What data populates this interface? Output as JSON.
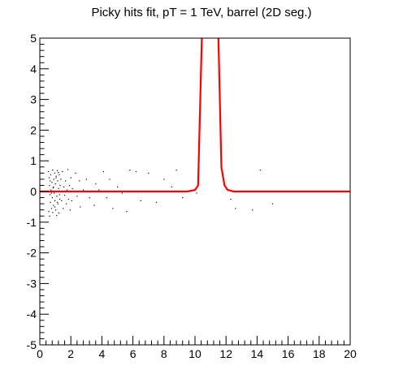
{
  "chart_data": {
    "type": "scatter",
    "title": "Picky hits fit, pT = 1 TeV, barrel (2D seg.)",
    "xlabel": "",
    "ylabel": "",
    "xlim": [
      0,
      20
    ],
    "ylim": [
      -5,
      5
    ],
    "x_ticks": [
      0,
      2,
      4,
      6,
      8,
      10,
      12,
      14,
      16,
      18,
      20
    ],
    "y_ticks": [
      -5,
      -4,
      -3,
      -2,
      -1,
      0,
      1,
      2,
      3,
      4,
      5
    ],
    "grid": false,
    "colors": {
      "points": "#000000",
      "curve": "#ff0000",
      "frame": "#000000"
    },
    "series": [
      {
        "type": "scatter",
        "points": [
          [
            0.55,
            0.65
          ],
          [
            0.6,
            0.45
          ],
          [
            0.62,
            0.2
          ],
          [
            0.65,
            -0.1
          ],
          [
            0.68,
            -0.35
          ],
          [
            0.7,
            0.55
          ],
          [
            0.72,
            0.05
          ],
          [
            0.75,
            -0.55
          ],
          [
            0.78,
            0.3
          ],
          [
            0.8,
            -0.2
          ],
          [
            0.82,
            0.7
          ],
          [
            0.85,
            0.12
          ],
          [
            0.87,
            -0.45
          ],
          [
            0.9,
            0.4
          ],
          [
            0.92,
            -0.05
          ],
          [
            0.95,
            0.6
          ],
          [
            0.97,
            -0.3
          ],
          [
            1.0,
            0.25
          ],
          [
            1.02,
            -0.6
          ],
          [
            1.05,
            0.5
          ],
          [
            1.07,
            0.0
          ],
          [
            1.1,
            -0.15
          ],
          [
            1.12,
            0.68
          ],
          [
            1.15,
            0.35
          ],
          [
            1.17,
            -0.4
          ],
          [
            1.2,
            0.1
          ],
          [
            1.22,
            -0.7
          ],
          [
            1.25,
            0.55
          ],
          [
            1.28,
            -0.25
          ],
          [
            1.3,
            0.2
          ],
          [
            0.58,
            -0.65
          ],
          [
            0.66,
            0.35
          ],
          [
            0.74,
            -0.05
          ],
          [
            0.83,
            -0.68
          ],
          [
            0.88,
            0.15
          ],
          [
            0.96,
            -0.5
          ],
          [
            1.04,
            0.45
          ],
          [
            1.13,
            -0.35
          ],
          [
            1.19,
            0.62
          ],
          [
            1.27,
            -0.1
          ],
          [
            1.35,
            0.4
          ],
          [
            1.4,
            -0.3
          ],
          [
            1.45,
            0.65
          ],
          [
            1.5,
            -0.55
          ],
          [
            1.55,
            0.15
          ],
          [
            1.6,
            -0.12
          ],
          [
            1.65,
            0.35
          ],
          [
            1.7,
            -0.4
          ],
          [
            1.75,
            0.05
          ],
          [
            1.8,
            0.72
          ],
          [
            1.85,
            -0.25
          ],
          [
            1.9,
            0.2
          ],
          [
            1.95,
            -0.6
          ],
          [
            2.0,
            0.45
          ],
          [
            2.05,
            -0.3
          ],
          [
            2.1,
            0.1
          ],
          [
            2.3,
            0.6
          ],
          [
            2.4,
            -0.15
          ],
          [
            2.55,
            0.35
          ],
          [
            2.6,
            -0.5
          ],
          [
            2.8,
            0.05
          ],
          [
            3.0,
            0.4
          ],
          [
            3.2,
            -0.2
          ],
          [
            3.5,
            -0.45
          ],
          [
            3.6,
            0.25
          ],
          [
            3.8,
            0.05
          ],
          [
            4.1,
            0.65
          ],
          [
            4.3,
            -0.2
          ],
          [
            4.5,
            0.4
          ],
          [
            4.7,
            -0.55
          ],
          [
            5.0,
            0.15
          ],
          [
            5.3,
            -0.05
          ],
          [
            5.6,
            -0.65
          ],
          [
            5.8,
            0.7
          ],
          [
            6.2,
            0.65
          ],
          [
            6.5,
            -0.3
          ],
          [
            7.0,
            0.6
          ],
          [
            7.5,
            -0.35
          ],
          [
            8.0,
            0.4
          ],
          [
            8.5,
            0.15
          ],
          [
            8.8,
            0.7
          ],
          [
            9.2,
            -0.2
          ],
          [
            10.1,
            -0.05
          ],
          [
            12.3,
            -0.25
          ],
          [
            12.6,
            -0.55
          ],
          [
            13.7,
            -0.6
          ],
          [
            14.2,
            0.7
          ],
          [
            15.0,
            -0.4
          ],
          [
            0.63,
            -0.8
          ],
          [
            1.08,
            -0.78
          ]
        ]
      },
      {
        "type": "line",
        "points": [
          [
            0,
            0
          ],
          [
            9.5,
            0
          ],
          [
            10,
            0.05
          ],
          [
            10.2,
            0.2
          ],
          [
            10.45,
            5.2
          ],
          [
            11.5,
            5.2
          ],
          [
            11.7,
            0.8
          ],
          [
            11.9,
            0.2
          ],
          [
            12.1,
            0.05
          ],
          [
            12.5,
            0
          ],
          [
            20,
            0
          ]
        ]
      }
    ]
  }
}
